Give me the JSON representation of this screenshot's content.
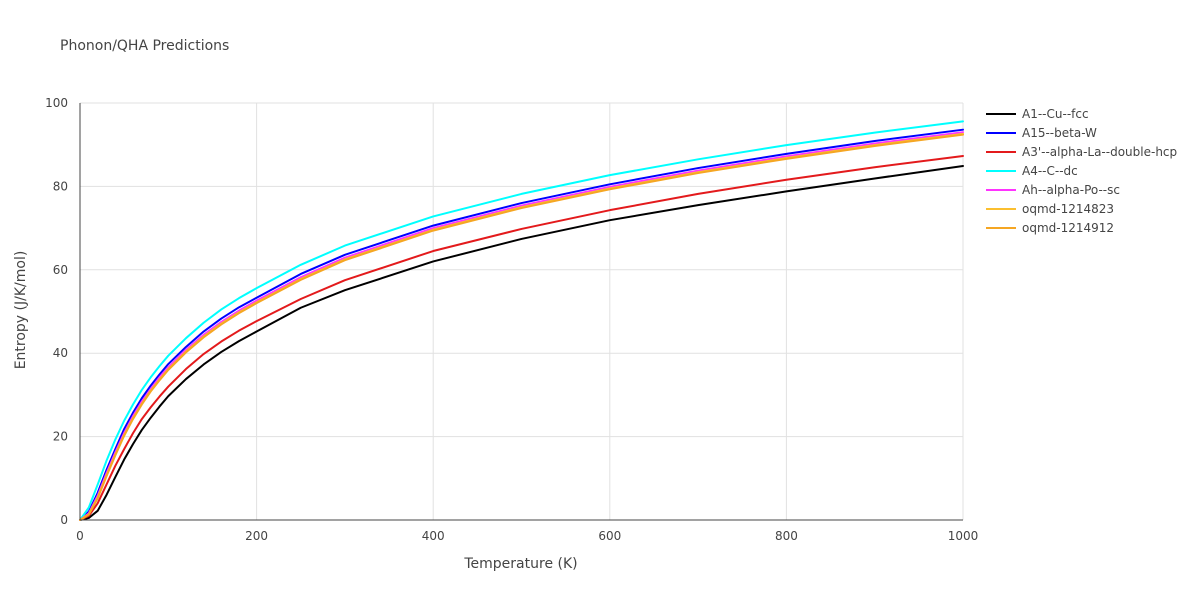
{
  "chart_data": {
    "type": "line",
    "title": "Phonon/QHA Predictions",
    "xlabel": "Temperature (K)",
    "ylabel": "Entropy (J/K/mol)",
    "xlim": [
      0,
      1000
    ],
    "ylim": [
      0,
      100
    ],
    "xticks": [
      0,
      200,
      400,
      600,
      800,
      1000
    ],
    "yticks": [
      0,
      20,
      40,
      60,
      80,
      100
    ],
    "xtick_labels": [
      "0",
      "200",
      "400",
      "600",
      "800",
      "1000"
    ],
    "ytick_labels": [
      "0",
      "20",
      "40",
      "60",
      "80",
      "100"
    ],
    "grid": true,
    "legend_position": "right",
    "x": [
      0,
      10,
      20,
      30,
      40,
      50,
      60,
      70,
      80,
      90,
      100,
      120,
      140,
      160,
      180,
      200,
      250,
      300,
      400,
      500,
      600,
      700,
      800,
      900,
      1000
    ],
    "series": [
      {
        "name": "A1--Cu--fcc",
        "color": "#000000",
        "values": [
          0,
          0.5,
          2.2,
          6.0,
          10.3,
          14.5,
          18.2,
          21.6,
          24.5,
          27.2,
          29.7,
          33.8,
          37.3,
          40.3,
          42.9,
          45.2,
          50.9,
          55.1,
          62.0,
          67.4,
          71.9,
          75.5,
          78.8,
          81.9,
          84.9
        ]
      },
      {
        "name": "A15--beta-W",
        "color": "#0000ff",
        "values": [
          0,
          2.0,
          6.5,
          12.0,
          17.0,
          21.8,
          25.7,
          29.2,
          32.2,
          34.9,
          37.4,
          41.5,
          45.2,
          48.3,
          51.0,
          53.3,
          59.0,
          63.6,
          70.6,
          76.0,
          80.5,
          84.4,
          87.8,
          90.9,
          93.6
        ]
      },
      {
        "name": "A3'--alpha-La--double-hcp",
        "color": "#e31a1c",
        "values": [
          0,
          1.0,
          4.0,
          8.5,
          13.0,
          17.0,
          20.8,
          24.2,
          27.0,
          29.6,
          32.0,
          36.2,
          39.8,
          42.8,
          45.4,
          47.7,
          53.0,
          57.5,
          64.5,
          69.8,
          74.3,
          78.2,
          81.6,
          84.6,
          87.3
        ]
      },
      {
        "name": "A4--C--dc",
        "color": "#00ffff",
        "values": [
          0,
          3.0,
          8.5,
          14.2,
          19.3,
          23.8,
          27.7,
          31.2,
          34.2,
          36.9,
          39.4,
          43.6,
          47.3,
          50.5,
          53.2,
          55.6,
          61.2,
          65.8,
          72.8,
          78.2,
          82.7,
          86.5,
          89.9,
          92.9,
          95.6
        ]
      },
      {
        "name": "Ah--alpha-Po--sc",
        "color": "#ff33ff",
        "values": [
          0,
          1.6,
          5.8,
          11.2,
          16.2,
          20.9,
          24.9,
          28.4,
          31.4,
          34.2,
          36.6,
          40.8,
          44.4,
          47.5,
          50.2,
          52.6,
          58.2,
          62.9,
          70.0,
          75.4,
          79.9,
          83.8,
          87.2,
          90.3,
          93.0
        ]
      },
      {
        "name": "oqmd-1214823",
        "color": "#fbbf2f",
        "values": [
          0,
          1.4,
          5.4,
          10.7,
          15.7,
          20.4,
          24.4,
          27.9,
          31.0,
          33.7,
          36.2,
          40.4,
          44.0,
          47.1,
          49.8,
          52.2,
          57.8,
          62.5,
          69.6,
          75.0,
          79.5,
          83.4,
          86.8,
          89.9,
          92.6
        ]
      },
      {
        "name": "oqmd-1214912",
        "color": "#f5a623",
        "values": [
          0,
          1.3,
          5.2,
          10.5,
          15.5,
          20.2,
          24.2,
          27.7,
          30.8,
          33.5,
          36.0,
          40.2,
          43.8,
          46.9,
          49.6,
          52.0,
          57.6,
          62.3,
          69.4,
          74.8,
          79.3,
          83.2,
          86.6,
          89.7,
          92.4
        ]
      }
    ]
  }
}
